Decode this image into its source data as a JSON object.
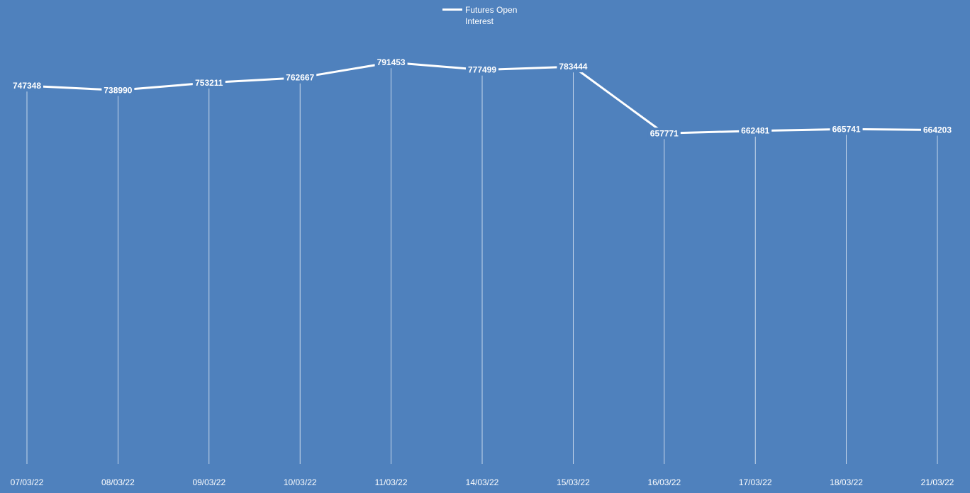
{
  "chart_data": {
    "type": "line",
    "title": "",
    "xlabel": "",
    "ylabel": "",
    "categories": [
      "07/03/22",
      "08/03/22",
      "09/03/22",
      "10/03/22",
      "11/03/22",
      "14/03/22",
      "15/03/22",
      "16/03/22",
      "17/03/22",
      "18/03/22",
      "21/03/22"
    ],
    "series": [
      {
        "name": "Futures Open Interest",
        "values": [
          747348,
          738990,
          753211,
          762667,
          791453,
          777499,
          783444,
          657771,
          662481,
          665741,
          664203
        ]
      }
    ],
    "data_labels": true,
    "drop_lines": true,
    "grid": false,
    "legend_position": "top",
    "colors": {
      "background": "#4f81bd",
      "series_line": "#ffffff",
      "text": "#ffffff"
    }
  }
}
